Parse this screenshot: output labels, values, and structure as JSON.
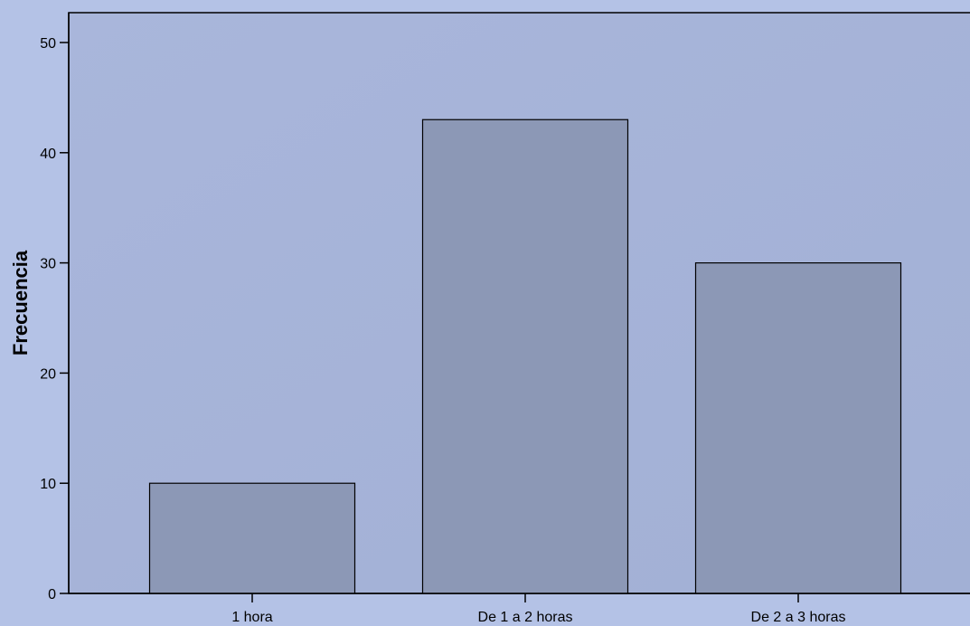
{
  "chart_data": {
    "type": "bar",
    "categories": [
      "1 hora",
      "De 1 a 2 horas",
      "De 2 a 3 horas"
    ],
    "values": [
      10,
      43,
      30
    ],
    "title": "",
    "xlabel": "",
    "ylabel": "Frecuencia",
    "ylim": [
      0,
      50
    ],
    "yticks": [
      0,
      10,
      20,
      30,
      40,
      50
    ],
    "grid": false,
    "legend": "none"
  },
  "colors": {
    "page_background": "#b4c2e6",
    "plot_background": "#a5b3d8",
    "bar_fill": "#8c98b6",
    "bar_stroke": "#000000",
    "axis": "#000000"
  }
}
